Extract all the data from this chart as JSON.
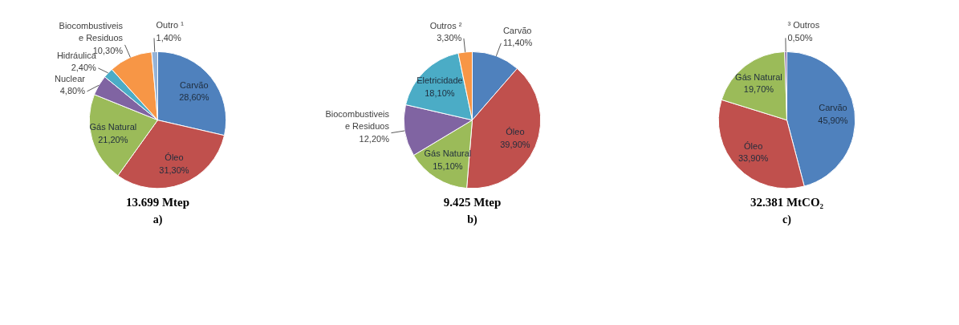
{
  "chart_data": [
    {
      "type": "pie",
      "title": "13.699 Mtep",
      "subtitle": "a)",
      "categories": [
        "Carvão",
        "Óleo",
        "Gás Natural",
        "Nuclear",
        "Hidráulica",
        "Biocombustiveis e Residuos",
        "Outro ¹"
      ],
      "values": [
        28.6,
        31.3,
        21.2,
        4.8,
        2.4,
        10.3,
        1.4
      ],
      "value_labels": [
        "28,60%",
        "31,30%",
        "21,20%",
        "4,80%",
        "2,40%",
        "10,30%",
        "1,40%"
      ],
      "colors": [
        "#4f81bd",
        "#c0504d",
        "#9bbb59",
        "#8064a2",
        "#4bacc6",
        "#f79646",
        "#95b3d7"
      ]
    },
    {
      "type": "pie",
      "title": "9.425 Mtep",
      "subtitle": "b)",
      "categories": [
        "Carvão",
        "Óleo",
        "Gás Natural",
        "Biocombustiveis e Residuos",
        "Eletricidade",
        "Outros ²"
      ],
      "values": [
        11.4,
        39.9,
        15.1,
        12.2,
        18.1,
        3.3
      ],
      "value_labels": [
        "11,40%",
        "39,90%",
        "15,10%",
        "12,20%",
        "18,10%",
        "3,30%"
      ],
      "colors": [
        "#4f81bd",
        "#c0504d",
        "#9bbb59",
        "#8064a2",
        "#4bacc6",
        "#f79646"
      ]
    },
    {
      "type": "pie",
      "title": "32.381 MtCO₂",
      "subtitle": "c)",
      "categories": [
        "Carvão",
        "Óleo",
        "Gás Natural",
        "³ Outros"
      ],
      "values": [
        45.9,
        33.9,
        19.7,
        0.5
      ],
      "value_labels": [
        "45,90%",
        "33,90%",
        "19,70%",
        "0,50%"
      ],
      "colors": [
        "#4f81bd",
        "#c0504d",
        "#9bbb59",
        "#8064a2"
      ]
    }
  ]
}
